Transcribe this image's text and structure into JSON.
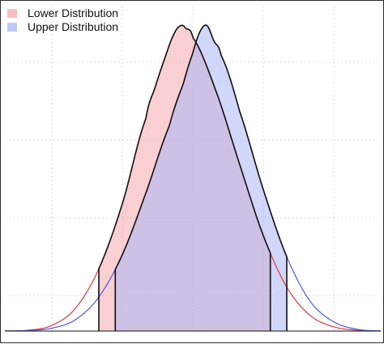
{
  "chart_data": {
    "type": "area",
    "title": "",
    "xlabel": "",
    "ylabel": "",
    "grid": true,
    "legend_position": "top-left",
    "xlim": [
      -4,
      4
    ],
    "ylim": [
      0,
      0.46
    ],
    "series": [
      {
        "name": "Lower Distribution",
        "color": "#e0363c",
        "fill": "#f4a8ad",
        "x": [
          -4.0,
          -3.5,
          -3.0,
          -2.5,
          -2.0,
          -1.5,
          -1.0,
          -0.8,
          -0.6,
          -0.4,
          -0.25,
          -0.15,
          0.0,
          0.5,
          1.0,
          1.5,
          2.0,
          2.5,
          3.0,
          3.5,
          4.0
        ],
        "y": [
          0.0001,
          0.0012,
          0.008,
          0.032,
          0.088,
          0.18,
          0.3,
          0.345,
          0.385,
          0.42,
          0.432,
          0.428,
          0.415,
          0.338,
          0.235,
          0.135,
          0.062,
          0.022,
          0.006,
          0.0012,
          0.0001
        ],
        "shaded_interval": [
          -2.0,
          1.65
        ]
      },
      {
        "name": "Upper Distribution",
        "color": "#4a5ae0",
        "fill": "#aab6f4",
        "x": [
          -4.0,
          -3.5,
          -3.0,
          -2.5,
          -2.0,
          -1.5,
          -1.0,
          -0.5,
          -0.2,
          0.0,
          0.15,
          0.3,
          0.45,
          0.6,
          1.0,
          1.5,
          2.0,
          2.5,
          3.0,
          3.5,
          4.0
        ],
        "y": [
          0.0001,
          0.0008,
          0.004,
          0.016,
          0.048,
          0.108,
          0.195,
          0.29,
          0.35,
          0.393,
          0.423,
          0.432,
          0.41,
          0.39,
          0.31,
          0.2,
          0.105,
          0.042,
          0.013,
          0.0025,
          0.0002
        ],
        "shaded_interval": [
          -1.65,
          2.0
        ]
      }
    ]
  }
}
